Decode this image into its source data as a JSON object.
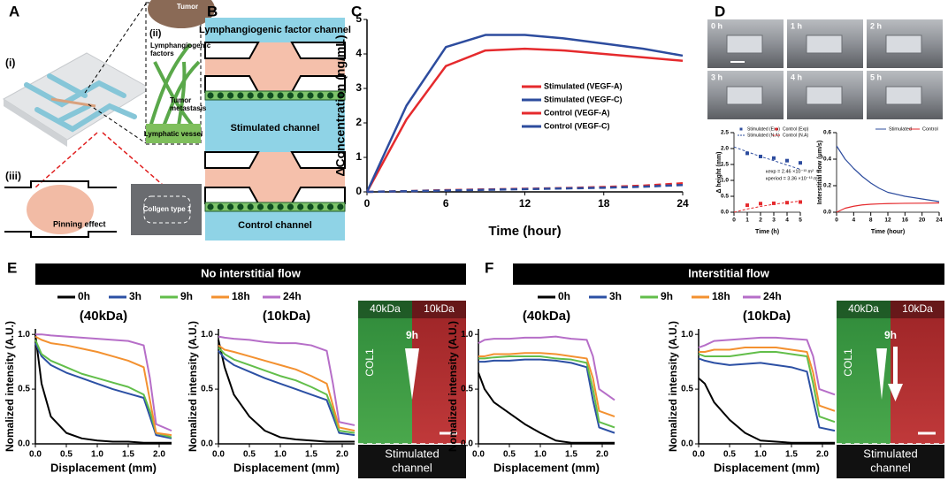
{
  "figure": {
    "panel_labels": [
      "A",
      "B",
      "C",
      "D",
      "E",
      "F"
    ],
    "a": {
      "sub_labels": [
        "(i)",
        "(ii)",
        "(iii)"
      ],
      "tumor": "Tumor",
      "factors": [
        "Lymphangiogenic",
        "factors"
      ],
      "metastasis": [
        "Tumor",
        "metastasis"
      ],
      "vessel": "Lymphatic vessel",
      "pinning": "Pinning effect",
      "collagen": "Collgen type 1"
    },
    "b": {
      "top": "Lymphangiogenic factor channel",
      "middle": "Stimulated channel",
      "bottom": "Control channel"
    },
    "d": {
      "photo_labels": [
        "0 h",
        "1 h",
        "2 h",
        "3 h",
        "4 h",
        "5 h"
      ]
    },
    "e": {
      "header": "No interstitial flow",
      "image": {
        "left": "40kDa",
        "right": "10kDa",
        "time": "9h",
        "gel": "COL1",
        "channel": [
          "Stimulated",
          "channel"
        ]
      }
    },
    "f": {
      "header": "Interstitial flow",
      "image": {
        "left": "40kDa",
        "right": "10kDa",
        "time": "9h",
        "gel": "COL1",
        "channel": [
          "Stimulated",
          "channel"
        ]
      }
    }
  },
  "chart_data": [
    {
      "type": "line",
      "xlabel": "Time (hour)",
      "ylabel": "ΔConcentration (ng/mL)",
      "x": [
        0,
        3,
        6,
        9,
        12,
        15,
        18,
        21,
        24
      ],
      "xlim": [
        0,
        24
      ],
      "xticks": [
        0,
        6,
        12,
        18,
        24
      ],
      "ylim": [
        0,
        5
      ],
      "yticks": [
        0,
        1,
        2,
        3,
        4,
        5
      ],
      "legend": "right",
      "series": [
        {
          "name": "Stimulated (VEGF-A)",
          "color": "#e52a2d",
          "style": "solid",
          "values": [
            0,
            2.1,
            3.65,
            4.1,
            4.15,
            4.1,
            4.0,
            3.9,
            3.8
          ]
        },
        {
          "name": "Stimulated (VEGF-C)",
          "color": "#2d4c9e",
          "style": "solid",
          "values": [
            0,
            2.5,
            4.2,
            4.55,
            4.55,
            4.45,
            4.3,
            4.15,
            3.95
          ]
        },
        {
          "name": "Control (VEGF-A)",
          "color": "#e52a2d",
          "style": "dashed",
          "values": [
            0,
            0.02,
            0.05,
            0.07,
            0.09,
            0.11,
            0.14,
            0.18,
            0.25
          ]
        },
        {
          "name": "Control (VEGF-C)",
          "color": "#2d4c9e",
          "style": "dashed",
          "values": [
            0,
            0.02,
            0.04,
            0.06,
            0.08,
            0.1,
            0.12,
            0.15,
            0.2
          ]
        }
      ]
    },
    {
      "type": "line",
      "xlabel": "Time (h)",
      "ylabel": "Δ height (mm)",
      "x": [
        0,
        1,
        2,
        3,
        4,
        5
      ],
      "xlim": [
        0,
        5
      ],
      "xticks": [
        0,
        1,
        2,
        3,
        4,
        5
      ],
      "ylim": [
        0,
        2.5
      ],
      "yticks": [
        {
          "value": 0,
          "label": "0.0"
        },
        0.5,
        {
          "value": 1,
          "label": "1.0"
        },
        1.5,
        {
          "value": 2,
          "label": "2.0"
        },
        2.5
      ],
      "legend": "top",
      "annotations": [
        "κexp = 2.46 ×10⁻¹³ m²",
        "κperiod = 3.36 ×10⁻¹³ m²"
      ],
      "series": [
        {
          "name": "Stimulated (Exp)",
          "color": "#2d4c9e",
          "style": "markers",
          "values": [
            null,
            1.85,
            1.75,
            1.7,
            1.62,
            1.55
          ]
        },
        {
          "name": "Control (Exp)",
          "color": "#e52a2d",
          "style": "markers",
          "values": [
            null,
            0.22,
            0.27,
            0.28,
            0.3,
            0.32
          ]
        },
        {
          "name": "Stimulated (N.A)",
          "color": "#2d4c9e",
          "style": "dashed",
          "values": [
            2.05,
            1.9,
            1.75,
            1.62,
            1.48,
            1.35
          ]
        },
        {
          "name": "Control (N.A)",
          "color": "#e52a2d",
          "style": "dashed",
          "values": [
            0,
            0.1,
            0.18,
            0.25,
            0.3,
            0.35
          ]
        }
      ]
    },
    {
      "type": "line",
      "xlabel": "Time (hour)",
      "ylabel": "Interstitial flow (μm/s)",
      "x": [
        0,
        2,
        4,
        6,
        8,
        10,
        12,
        16,
        20,
        24
      ],
      "xlim": [
        0,
        24
      ],
      "xticks": [
        0,
        4,
        8,
        12,
        16,
        20,
        24
      ],
      "ylim": [
        0,
        0.6
      ],
      "yticks": [
        {
          "value": 0,
          "label": "0.0"
        },
        0.2,
        0.4,
        0.6
      ],
      "legend": "top",
      "series": [
        {
          "name": "Stimulated",
          "color": "#2d4c9e",
          "style": "solid",
          "values": [
            0.5,
            0.4,
            0.33,
            0.27,
            0.22,
            0.18,
            0.15,
            0.12,
            0.1,
            0.08
          ]
        },
        {
          "name": "Control",
          "color": "#e52a2d",
          "style": "solid",
          "values": [
            0,
            0.03,
            0.045,
            0.055,
            0.06,
            0.063,
            0.065,
            0.067,
            0.068,
            0.07
          ]
        }
      ]
    },
    {
      "type": "line",
      "title": "(40kDa)",
      "xlabel": "Displacement (mm)",
      "ylabel": "Nomalized intensity (A.U.)",
      "x": [
        0,
        0.1,
        0.25,
        0.5,
        0.75,
        1.0,
        1.25,
        1.5,
        1.75,
        1.85,
        1.95,
        2.2
      ],
      "xlim": [
        0,
        2.2
      ],
      "xticks": [
        {
          "value": 0,
          "label": "0.0"
        },
        0.5,
        {
          "value": 1,
          "label": "1.0"
        },
        1.5,
        {
          "value": 2,
          "label": "2.0"
        }
      ],
      "ylim": [
        0,
        1.05
      ],
      "yticks": [
        {
          "value": 0,
          "label": "0.0"
        },
        0.5,
        {
          "value": 1,
          "label": "1.0"
        }
      ],
      "legend": "above",
      "series": [
        {
          "name": "0h",
          "color": "#000000",
          "style": "solid",
          "values": [
            1.0,
            0.55,
            0.25,
            0.1,
            0.05,
            0.03,
            0.02,
            0.02,
            0.01,
            0.01,
            0.01,
            0.01
          ]
        },
        {
          "name": "3h",
          "color": "#2c50a4",
          "style": "solid",
          "values": [
            0.92,
            0.8,
            0.72,
            0.65,
            0.6,
            0.55,
            0.5,
            0.46,
            0.42,
            0.25,
            0.08,
            0.05
          ]
        },
        {
          "name": "9h",
          "color": "#62be4a",
          "style": "solid",
          "values": [
            0.95,
            0.82,
            0.76,
            0.7,
            0.64,
            0.6,
            0.56,
            0.52,
            0.45,
            0.3,
            0.1,
            0.06
          ]
        },
        {
          "name": "18h",
          "color": "#f39130",
          "style": "solid",
          "values": [
            0.98,
            0.95,
            0.92,
            0.9,
            0.87,
            0.84,
            0.8,
            0.76,
            0.7,
            0.4,
            0.1,
            0.08
          ]
        },
        {
          "name": "24h",
          "color": "#b66ec8",
          "style": "solid",
          "values": [
            1.0,
            1.0,
            0.99,
            0.98,
            0.97,
            0.96,
            0.95,
            0.94,
            0.9,
            0.6,
            0.18,
            0.12
          ]
        }
      ]
    },
    {
      "type": "line",
      "title": "(10kDa)",
      "xlabel": "Displacement (mm)",
      "ylabel": "Nomalized intensity (A.U.)",
      "x": [
        0,
        0.1,
        0.25,
        0.5,
        0.75,
        1.0,
        1.25,
        1.5,
        1.75,
        1.85,
        1.95,
        2.2
      ],
      "xlim": [
        0,
        2.2
      ],
      "xticks": [
        {
          "value": 0,
          "label": "0.0"
        },
        0.5,
        {
          "value": 1,
          "label": "1.0"
        },
        1.5,
        {
          "value": 2,
          "label": "2.0"
        }
      ],
      "ylim": [
        0,
        1.05
      ],
      "yticks": [
        {
          "value": 0,
          "label": "0.0"
        },
        0.5,
        {
          "value": 1,
          "label": "1.0"
        }
      ],
      "series": [
        {
          "name": "0h",
          "color": "#000000",
          "style": "solid",
          "values": [
            0.95,
            0.7,
            0.45,
            0.25,
            0.12,
            0.06,
            0.04,
            0.03,
            0.02,
            0.02,
            0.02,
            0.02
          ]
        },
        {
          "name": "3h",
          "color": "#2c50a4",
          "style": "solid",
          "values": [
            0.85,
            0.78,
            0.72,
            0.66,
            0.6,
            0.55,
            0.5,
            0.45,
            0.4,
            0.25,
            0.1,
            0.08
          ]
        },
        {
          "name": "9h",
          "color": "#62be4a",
          "style": "solid",
          "values": [
            0.88,
            0.82,
            0.77,
            0.72,
            0.67,
            0.62,
            0.58,
            0.52,
            0.45,
            0.3,
            0.12,
            0.1
          ]
        },
        {
          "name": "18h",
          "color": "#f39130",
          "style": "solid",
          "values": [
            0.9,
            0.86,
            0.84,
            0.8,
            0.76,
            0.72,
            0.68,
            0.62,
            0.55,
            0.35,
            0.15,
            0.12
          ]
        },
        {
          "name": "24h",
          "color": "#b66ec8",
          "style": "solid",
          "values": [
            0.98,
            0.97,
            0.96,
            0.95,
            0.93,
            0.92,
            0.92,
            0.9,
            0.85,
            0.55,
            0.2,
            0.17
          ]
        }
      ]
    },
    {
      "type": "line",
      "title": "(40kDa)",
      "xlabel": "Displacement (mm)",
      "ylabel": "Nomalized intensity (A.U.)",
      "x": [
        0,
        0.1,
        0.25,
        0.5,
        0.75,
        1.0,
        1.25,
        1.5,
        1.75,
        1.85,
        1.95,
        2.2
      ],
      "xlim": [
        0,
        2.2
      ],
      "xticks": [
        {
          "value": 0,
          "label": "0.0"
        },
        0.5,
        {
          "value": 1,
          "label": "1.0"
        },
        1.5,
        {
          "value": 2,
          "label": "2.0"
        }
      ],
      "ylim": [
        0,
        1.05
      ],
      "yticks": [
        {
          "value": 0,
          "label": "0.0"
        },
        0.5,
        {
          "value": 1,
          "label": "1.0"
        }
      ],
      "legend": "above",
      "series": [
        {
          "name": "0h",
          "color": "#000000",
          "style": "solid",
          "values": [
            0.65,
            0.5,
            0.38,
            0.28,
            0.18,
            0.1,
            0.03,
            0.01,
            0.01,
            0.01,
            0.01,
            0.01
          ]
        },
        {
          "name": "3h",
          "color": "#2c50a4",
          "style": "solid",
          "values": [
            0.75,
            0.75,
            0.76,
            0.76,
            0.77,
            0.77,
            0.76,
            0.74,
            0.7,
            0.4,
            0.15,
            0.1
          ]
        },
        {
          "name": "9h",
          "color": "#62be4a",
          "style": "solid",
          "values": [
            0.78,
            0.78,
            0.79,
            0.8,
            0.8,
            0.8,
            0.78,
            0.77,
            0.74,
            0.5,
            0.2,
            0.15
          ]
        },
        {
          "name": "18h",
          "color": "#f39130",
          "style": "solid",
          "values": [
            0.8,
            0.8,
            0.82,
            0.82,
            0.83,
            0.83,
            0.82,
            0.8,
            0.78,
            0.6,
            0.3,
            0.25
          ]
        },
        {
          "name": "24h",
          "color": "#b66ec8",
          "style": "solid",
          "values": [
            0.92,
            0.95,
            0.96,
            0.96,
            0.97,
            0.97,
            0.98,
            0.96,
            0.95,
            0.8,
            0.5,
            0.4
          ]
        }
      ]
    },
    {
      "type": "line",
      "title": "(10kDa)",
      "xlabel": "Displacement (mm)",
      "ylabel": "Nomalized intensity (A.U.)",
      "x": [
        0,
        0.1,
        0.25,
        0.5,
        0.75,
        1.0,
        1.25,
        1.5,
        1.75,
        1.85,
        1.95,
        2.2
      ],
      "xlim": [
        0,
        2.2
      ],
      "xticks": [
        {
          "value": 0,
          "label": "0.0"
        },
        0.5,
        {
          "value": 1,
          "label": "1.0"
        },
        1.5,
        {
          "value": 2,
          "label": "2.0"
        }
      ],
      "ylim": [
        0,
        1.05
      ],
      "yticks": [
        {
          "value": 0,
          "label": "0.0"
        },
        0.5,
        {
          "value": 1,
          "label": "1.0"
        }
      ],
      "series": [
        {
          "name": "0h",
          "color": "#000000",
          "style": "solid",
          "values": [
            0.6,
            0.55,
            0.38,
            0.22,
            0.1,
            0.03,
            0.02,
            0.01,
            0.01,
            0.01,
            0.01,
            0.01
          ]
        },
        {
          "name": "3h",
          "color": "#2c50a4",
          "style": "solid",
          "values": [
            0.78,
            0.76,
            0.74,
            0.72,
            0.73,
            0.74,
            0.72,
            0.7,
            0.66,
            0.4,
            0.15,
            0.12
          ]
        },
        {
          "name": "9h",
          "color": "#62be4a",
          "style": "solid",
          "values": [
            0.82,
            0.8,
            0.8,
            0.8,
            0.82,
            0.84,
            0.84,
            0.82,
            0.8,
            0.55,
            0.25,
            0.2
          ]
        },
        {
          "name": "18h",
          "color": "#f39130",
          "style": "solid",
          "values": [
            0.84,
            0.84,
            0.86,
            0.86,
            0.88,
            0.88,
            0.88,
            0.86,
            0.84,
            0.65,
            0.35,
            0.3
          ]
        },
        {
          "name": "24h",
          "color": "#b66ec8",
          "style": "solid",
          "values": [
            0.88,
            0.9,
            0.94,
            0.95,
            0.96,
            0.97,
            0.97,
            0.96,
            0.95,
            0.8,
            0.5,
            0.45
          ]
        }
      ]
    }
  ]
}
